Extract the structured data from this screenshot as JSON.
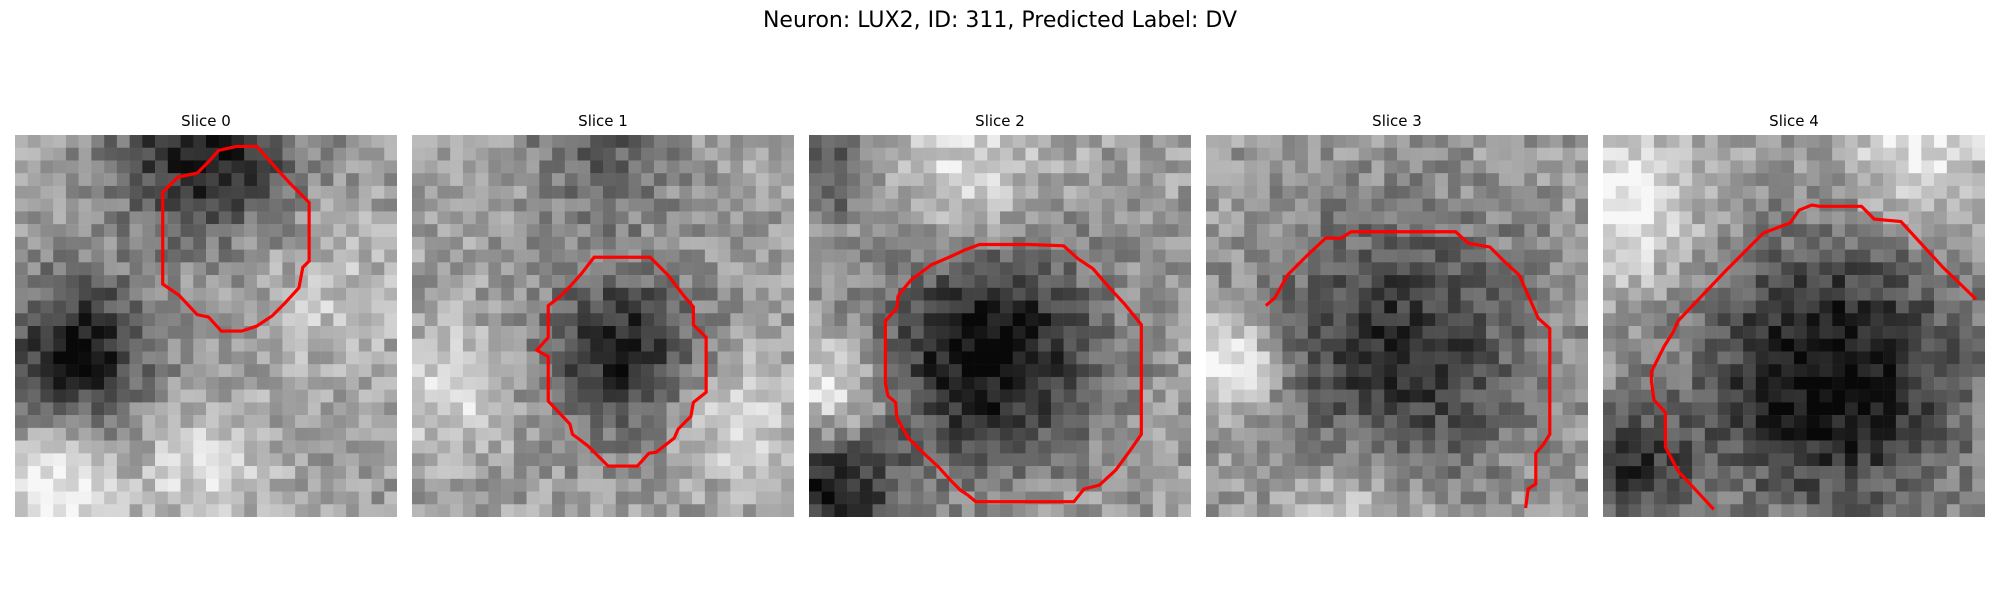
{
  "figure": {
    "title": "Neuron: LUX2, ID: 311, Predicted Label: DV"
  },
  "slices": [
    {
      "title": "Slice 0"
    },
    {
      "title": "Slice 1"
    },
    {
      "title": "Slice 2"
    },
    {
      "title": "Slice 3"
    },
    {
      "title": "Slice 4"
    }
  ],
  "colors": {
    "contour": "#ff0000",
    "colormap": "gray"
  }
}
